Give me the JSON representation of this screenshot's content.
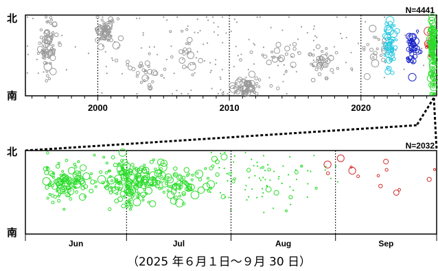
{
  "caption": "（2025 年６月１日～９月 30 日）",
  "colors": {
    "background_events": "#999999",
    "cyan_group": "#29c8e0",
    "blue_group": "#1a24c8",
    "recent_green": "#2bdc2b",
    "recent_red": "#d42a2a",
    "frame": "#000000"
  },
  "chart_data": [
    {
      "type": "scatter",
      "panel": "long-term",
      "count_label": "N=4441",
      "y_top_label": "北",
      "y_bottom_label": "南",
      "xlim": [
        1994.5,
        2025.75
      ],
      "ylim": [
        0,
        1
      ],
      "x_ticks": [
        2000,
        2010,
        2020
      ],
      "x_tick_labels": [
        "2000",
        "2010",
        "2020"
      ],
      "minor_tick_step": 1,
      "grid": "dotted vertical lines at decade boundaries",
      "clusters": [
        {
          "group": "gray",
          "x": 1996.2,
          "y": 0.62,
          "spread_x": 0.35,
          "spread_y": 0.18,
          "n": 70,
          "shape": "circle"
        },
        {
          "group": "gray",
          "x": 2000.6,
          "y": 0.8,
          "spread_x": 0.4,
          "spread_y": 0.08,
          "n": 55,
          "shape": "circle"
        },
        {
          "group": "gray",
          "x": 2003.5,
          "y": 0.3,
          "spread_x": 0.6,
          "spread_y": 0.12,
          "n": 30,
          "shape": "circle"
        },
        {
          "group": "gray",
          "x": 2006.8,
          "y": 0.55,
          "spread_x": 0.5,
          "spread_y": 0.12,
          "n": 20,
          "shape": "circle"
        },
        {
          "group": "gray",
          "x": 2011.2,
          "y": 0.1,
          "spread_x": 0.5,
          "spread_y": 0.06,
          "n": 60,
          "shape": "circle"
        },
        {
          "group": "gray",
          "x": 2013.0,
          "y": 0.45,
          "spread_x": 1.0,
          "spread_y": 0.2,
          "n": 25,
          "shape": "circle"
        },
        {
          "group": "gray",
          "x": 2017.0,
          "y": 0.38,
          "spread_x": 0.7,
          "spread_y": 0.12,
          "n": 35,
          "shape": "circle"
        },
        {
          "group": "gray",
          "x": 2021.0,
          "y": 0.58,
          "spread_x": 0.5,
          "spread_y": 0.12,
          "n": 20,
          "shape": "circle"
        },
        {
          "group": "gray",
          "x": 2010.0,
          "y": 0.5,
          "spread_x": 8.0,
          "spread_y": 0.35,
          "n": 160,
          "shape": "dot"
        },
        {
          "group": "cyan",
          "x": 2022.1,
          "y": 0.62,
          "spread_x": 0.25,
          "spread_y": 0.16,
          "n": 60,
          "shape": "circle"
        },
        {
          "group": "blue",
          "x": 2023.9,
          "y": 0.58,
          "spread_x": 0.22,
          "spread_y": 0.12,
          "n": 45,
          "shape": "circle"
        },
        {
          "group": "red",
          "x": 2025.2,
          "y": 0.68,
          "spread_x": 0.15,
          "spread_y": 0.1,
          "n": 15,
          "shape": "circle"
        },
        {
          "group": "green",
          "x": 2025.45,
          "y": 0.55,
          "spread_x": 0.1,
          "spread_y": 0.22,
          "n": 120,
          "shape": "circle"
        }
      ]
    },
    {
      "type": "scatter",
      "panel": "recent",
      "count_label": "N=2032",
      "y_top_label": "北",
      "y_bottom_label": "南",
      "xlim": [
        0,
        122
      ],
      "ylim": [
        0,
        1
      ],
      "month_boundaries": [
        0,
        30,
        61,
        92,
        122
      ],
      "month_labels": [
        "Jun",
        "Jul",
        "Aug",
        "Sep"
      ],
      "grid": "dotted vertical lines at month boundaries",
      "clusters": [
        {
          "group": "green",
          "x": 12,
          "y": 0.62,
          "spread_x": 3.5,
          "spread_y": 0.1,
          "n": 110,
          "shape": "circle"
        },
        {
          "group": "green",
          "x": 32,
          "y": 0.65,
          "spread_x": 5.5,
          "spread_y": 0.12,
          "n": 170,
          "shape": "circle"
        },
        {
          "group": "green",
          "x": 31,
          "y": 0.45,
          "spread_x": 1.2,
          "spread_y": 0.1,
          "n": 25,
          "shape": "circle"
        },
        {
          "group": "green",
          "x": 46,
          "y": 0.62,
          "spread_x": 5.0,
          "spread_y": 0.1,
          "n": 80,
          "shape": "circle"
        },
        {
          "group": "green",
          "x": 70,
          "y": 0.66,
          "spread_x": 10.0,
          "spread_y": 0.18,
          "n": 70,
          "shape": "dot"
        },
        {
          "group": "green",
          "x": 72,
          "y": 0.65,
          "spread_x": 10.0,
          "spread_y": 0.14,
          "n": 18,
          "shape": "circle"
        },
        {
          "group": "red",
          "x": 108,
          "y": 0.68,
          "spread_x": 10.0,
          "spread_y": 0.12,
          "n": 14,
          "shape": "circle"
        }
      ]
    }
  ]
}
